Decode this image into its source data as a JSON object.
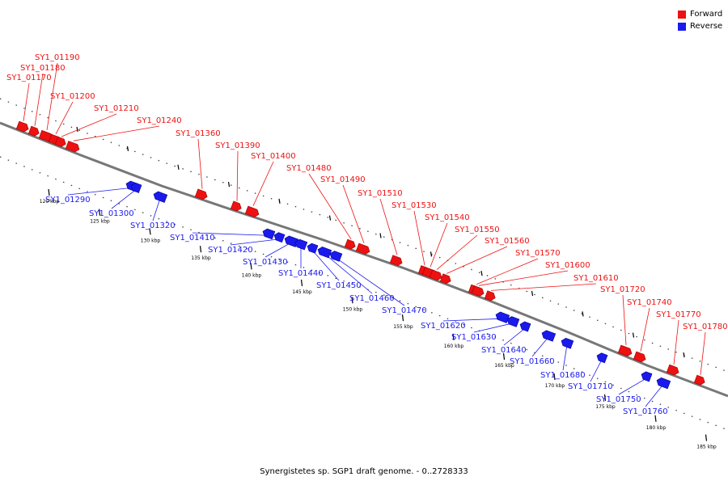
{
  "colors": {
    "forward": "#ee1111",
    "reverse": "#1a1aee",
    "backbone": "#777777"
  },
  "legend": [
    {
      "label": "Forward",
      "color": "#ee1111"
    },
    {
      "label": "Reverse",
      "color": "#1a1aee"
    }
  ],
  "caption": "Synergistetes sp. SGP1 draft genome. - 0..2728333",
  "ticks": [
    {
      "kbp": 120,
      "label": "120 kbp"
    },
    {
      "kbp": 125,
      "label": "125 kbp"
    },
    {
      "kbp": 130,
      "label": "130 kbp"
    },
    {
      "kbp": 135,
      "label": "135 kbp"
    },
    {
      "kbp": 140,
      "label": "140 kbp"
    },
    {
      "kbp": 145,
      "label": "145 kbp"
    },
    {
      "kbp": 150,
      "label": "150 kbp"
    },
    {
      "kbp": 155,
      "label": "155 kbp"
    },
    {
      "kbp": 160,
      "label": "160 kbp"
    },
    {
      "kbp": 165,
      "label": "165 kbp"
    },
    {
      "kbp": 170,
      "label": "170 kbp"
    },
    {
      "kbp": 175,
      "label": "175 kbp"
    },
    {
      "kbp": 180,
      "label": "180 kbp"
    },
    {
      "kbp": 185,
      "label": "185 kbp"
    }
  ],
  "genes": [
    {
      "label": "SY1_01170",
      "strand": "forward"
    },
    {
      "label": "SY1_01180",
      "strand": "forward"
    },
    {
      "label": "SY1_01190",
      "strand": "forward"
    },
    {
      "label": "SY1_01200",
      "strand": "forward"
    },
    {
      "label": "SY1_01210",
      "strand": "forward"
    },
    {
      "label": "SY1_01240",
      "strand": "forward"
    },
    {
      "label": "SY1_01290",
      "strand": "reverse"
    },
    {
      "label": "SY1_01300",
      "strand": "reverse"
    },
    {
      "label": "SY1_01320",
      "strand": "reverse"
    },
    {
      "label": "SY1_01360",
      "strand": "forward"
    },
    {
      "label": "SY1_01390",
      "strand": "forward"
    },
    {
      "label": "SY1_01400",
      "strand": "forward"
    },
    {
      "label": "SY1_01410",
      "strand": "reverse"
    },
    {
      "label": "SY1_01420",
      "strand": "reverse"
    },
    {
      "label": "SY1_01430",
      "strand": "reverse"
    },
    {
      "label": "SY1_01440",
      "strand": "reverse"
    },
    {
      "label": "SY1_01450",
      "strand": "reverse"
    },
    {
      "label": "SY1_01460",
      "strand": "reverse"
    },
    {
      "label": "SY1_01470",
      "strand": "reverse"
    },
    {
      "label": "SY1_01480",
      "strand": "forward"
    },
    {
      "label": "SY1_01490",
      "strand": "forward"
    },
    {
      "label": "SY1_01510",
      "strand": "forward"
    },
    {
      "label": "SY1_01530",
      "strand": "forward"
    },
    {
      "label": "SY1_01540",
      "strand": "forward"
    },
    {
      "label": "SY1_01550",
      "strand": "forward"
    },
    {
      "label": "SY1_01560",
      "strand": "forward"
    },
    {
      "label": "SY1_01570",
      "strand": "forward"
    },
    {
      "label": "SY1_01600",
      "strand": "forward"
    },
    {
      "label": "SY1_01610",
      "strand": "forward"
    },
    {
      "label": "SY1_01620",
      "strand": "reverse"
    },
    {
      "label": "SY1_01630",
      "strand": "reverse"
    },
    {
      "label": "SY1_01640",
      "strand": "reverse"
    },
    {
      "label": "SY1_01660",
      "strand": "reverse"
    },
    {
      "label": "SY1_01680",
      "strand": "reverse"
    },
    {
      "label": "SY1_01710",
      "strand": "reverse"
    },
    {
      "label": "SY1_01720",
      "strand": "forward"
    },
    {
      "label": "SY1_01740",
      "strand": "forward"
    },
    {
      "label": "SY1_01750",
      "strand": "reverse"
    },
    {
      "label": "SY1_01760",
      "strand": "reverse"
    },
    {
      "label": "SY1_01770",
      "strand": "forward"
    },
    {
      "label": "SY1_01780",
      "strand": "forward"
    }
  ]
}
